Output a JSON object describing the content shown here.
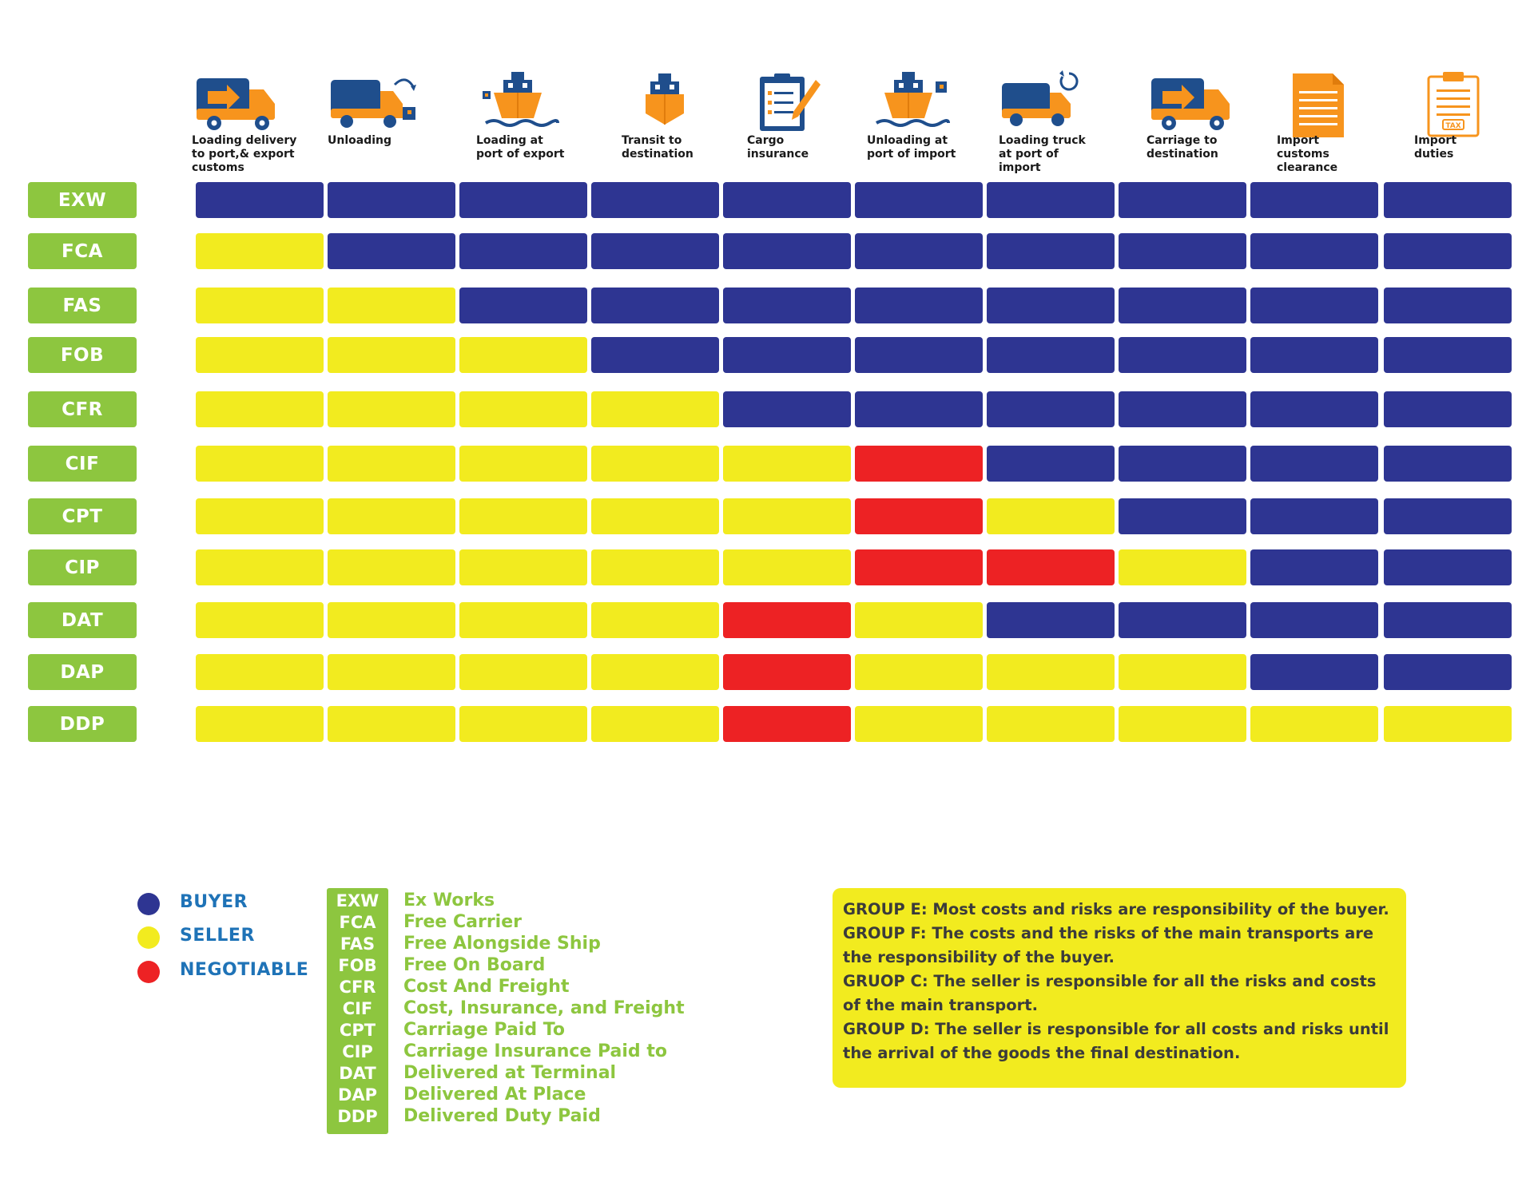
{
  "colors": {
    "buyer": "#2e3592",
    "seller": "#f2eb1f",
    "negotiable": "#ed2224",
    "term_tag": "#8dc63f",
    "legend_text": "#1f73b7",
    "icon_blue": "#1f4e8c",
    "icon_orange": "#f7941d"
  },
  "columns": [
    {
      "label": "Loading delivery\nto port,& export\ncustoms",
      "icon": "truck-arrow-icon"
    },
    {
      "label": "Unloading",
      "icon": "truck-unloading-icon"
    },
    {
      "label": "Loading at\nport of export",
      "icon": "ship-loading-icon"
    },
    {
      "label": "Transit to\ndestination",
      "icon": "ship-icon"
    },
    {
      "label": "Cargo\ninsurance",
      "icon": "clipboard-pen-icon"
    },
    {
      "label": "Unloading at\nport of import",
      "icon": "ship-unloading-icon"
    },
    {
      "label": "Loading truck\nat port of\nimport",
      "icon": "truck-loading-icon"
    },
    {
      "label": "Carriage to\ndestination",
      "icon": "truck-arrow-icon"
    },
    {
      "label": "Import\ncustoms\nclearance",
      "icon": "document-icon"
    },
    {
      "label": "Import\nduties",
      "icon": "tax-document-icon"
    }
  ],
  "rows": [
    {
      "term": "EXW",
      "cells": [
        "B",
        "B",
        "B",
        "B",
        "B",
        "B",
        "B",
        "B",
        "B",
        "B"
      ]
    },
    {
      "term": "FCA",
      "cells": [
        "S",
        "B",
        "B",
        "B",
        "B",
        "B",
        "B",
        "B",
        "B",
        "B"
      ]
    },
    {
      "term": "FAS",
      "cells": [
        "S",
        "S",
        "B",
        "B",
        "B",
        "B",
        "B",
        "B",
        "B",
        "B"
      ]
    },
    {
      "term": "FOB",
      "cells": [
        "S",
        "S",
        "S",
        "B",
        "B",
        "B",
        "B",
        "B",
        "B",
        "B"
      ]
    },
    {
      "term": "CFR",
      "cells": [
        "S",
        "S",
        "S",
        "S",
        "B",
        "B",
        "B",
        "B",
        "B",
        "B"
      ]
    },
    {
      "term": "CIF",
      "cells": [
        "S",
        "S",
        "S",
        "S",
        "S",
        "N",
        "B",
        "B",
        "B",
        "B"
      ]
    },
    {
      "term": "CPT",
      "cells": [
        "S",
        "S",
        "S",
        "S",
        "S",
        "N",
        "S",
        "B",
        "B",
        "B"
      ]
    },
    {
      "term": "CIP",
      "cells": [
        "S",
        "S",
        "S",
        "S",
        "S",
        "N",
        "N",
        "S",
        "B",
        "B"
      ]
    },
    {
      "term": "DAT",
      "cells": [
        "S",
        "S",
        "S",
        "S",
        "N",
        "S",
        "B",
        "B",
        "B",
        "B"
      ]
    },
    {
      "term": "DAP",
      "cells": [
        "S",
        "S",
        "S",
        "S",
        "N",
        "S",
        "S",
        "S",
        "B",
        "B"
      ]
    },
    {
      "term": "DDP",
      "cells": [
        "S",
        "S",
        "S",
        "S",
        "N",
        "S",
        "S",
        "S",
        "S",
        "S"
      ]
    }
  ],
  "legend": [
    {
      "key": "B",
      "label": "BUYER"
    },
    {
      "key": "S",
      "label": "SELLER"
    },
    {
      "key": "N",
      "label": "NEGOTIABLE"
    }
  ],
  "abbreviations": [
    {
      "code": "EXW",
      "name": "Ex Works"
    },
    {
      "code": "FCA",
      "name": "Free Carrier"
    },
    {
      "code": "FAS",
      "name": "Free Alongside Ship"
    },
    {
      "code": "FOB",
      "name": "Free On Board"
    },
    {
      "code": "CFR",
      "name": "Cost And Freight"
    },
    {
      "code": "CIF",
      "name": "Cost, Insurance, and Freight"
    },
    {
      "code": "CPT",
      "name": "Carriage Paid To"
    },
    {
      "code": "CIP",
      "name": "Carriage Insurance Paid to"
    },
    {
      "code": "DAT",
      "name": "Delivered at Terminal"
    },
    {
      "code": "DAP",
      "name": "Delivered At Place"
    },
    {
      "code": "DDP",
      "name": "Delivered Duty Paid"
    }
  ],
  "groups": [
    "GROUP E: Most costs and risks are responsibility of the buyer.",
    "GROUP F: The costs and the risks of the main transports are",
    "the responsibility of the buyer.",
    "GRUOP C: The seller is responsible for all the risks and costs",
    "of the main transport.",
    "GROUP D: The seller is responsible for all costs and risks until",
    "the arrival of the goods the final destination."
  ],
  "icon_texts": {
    "tax": "TAX"
  }
}
